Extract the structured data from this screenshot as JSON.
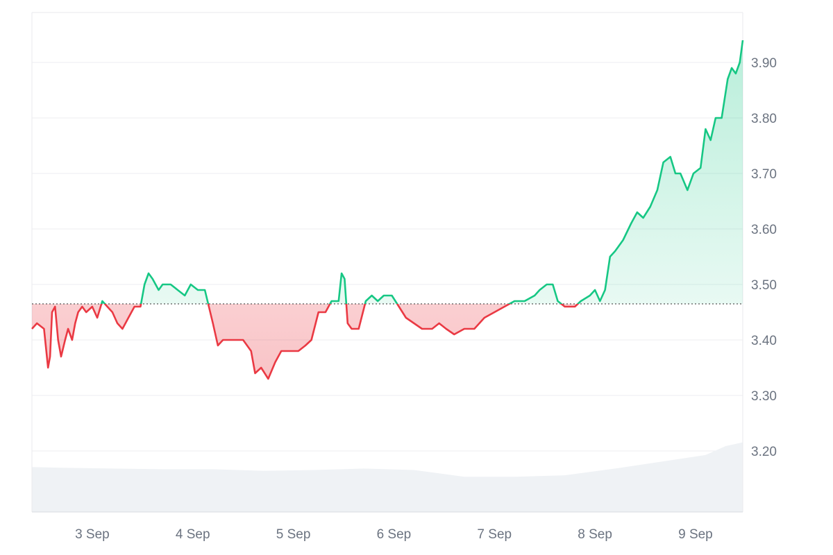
{
  "chart_data": {
    "type": "line",
    "baseline": 3.465,
    "ylim": [
      3.09,
      3.99
    ],
    "y_ticks": [
      "3.90",
      "3.80",
      "3.70",
      "3.60",
      "3.50",
      "3.40",
      "3.30",
      "3.20"
    ],
    "x_ticks": [
      "3 Sep",
      "4 Sep",
      "5 Sep",
      "6 Sep",
      "7 Sep",
      "8 Sep",
      "9 Sep"
    ],
    "x_tick_days": [
      3,
      4,
      5,
      6,
      7,
      8,
      9
    ],
    "xlim": [
      2.4,
      9.47
    ],
    "grid": true,
    "colors": {
      "up": "#16c784",
      "down": "#ea3943",
      "up_fill": "#16c784",
      "down_fill": "#ea3943",
      "volume": "#eff2f5",
      "axis_text": "#6b7380"
    },
    "series": [
      {
        "values": [
          [
            2.4,
            3.42
          ],
          [
            2.45,
            3.43
          ],
          [
            2.52,
            3.42
          ],
          [
            2.56,
            3.35
          ],
          [
            2.58,
            3.37
          ],
          [
            2.6,
            3.45
          ],
          [
            2.63,
            3.46
          ],
          [
            2.66,
            3.4
          ],
          [
            2.69,
            3.37
          ],
          [
            2.73,
            3.4
          ],
          [
            2.76,
            3.42
          ],
          [
            2.8,
            3.4
          ],
          [
            2.83,
            3.43
          ],
          [
            2.86,
            3.45
          ],
          [
            2.9,
            3.46
          ],
          [
            2.94,
            3.45
          ],
          [
            3.0,
            3.46
          ],
          [
            3.05,
            3.44
          ],
          [
            3.1,
            3.47
          ],
          [
            3.15,
            3.46
          ],
          [
            3.2,
            3.45
          ],
          [
            3.25,
            3.43
          ],
          [
            3.3,
            3.42
          ],
          [
            3.36,
            3.44
          ],
          [
            3.42,
            3.46
          ],
          [
            3.48,
            3.46
          ],
          [
            3.52,
            3.5
          ],
          [
            3.56,
            3.52
          ],
          [
            3.6,
            3.51
          ],
          [
            3.66,
            3.49
          ],
          [
            3.7,
            3.5
          ],
          [
            3.78,
            3.5
          ],
          [
            3.85,
            3.49
          ],
          [
            3.92,
            3.48
          ],
          [
            3.98,
            3.5
          ],
          [
            4.05,
            3.49
          ],
          [
            4.12,
            3.49
          ],
          [
            4.16,
            3.46
          ],
          [
            4.2,
            3.43
          ],
          [
            4.25,
            3.39
          ],
          [
            4.3,
            3.4
          ],
          [
            4.4,
            3.4
          ],
          [
            4.5,
            3.4
          ],
          [
            4.58,
            3.38
          ],
          [
            4.62,
            3.34
          ],
          [
            4.68,
            3.35
          ],
          [
            4.75,
            3.33
          ],
          [
            4.82,
            3.36
          ],
          [
            4.88,
            3.38
          ],
          [
            4.95,
            3.38
          ],
          [
            5.05,
            3.38
          ],
          [
            5.12,
            3.39
          ],
          [
            5.18,
            3.4
          ],
          [
            5.25,
            3.45
          ],
          [
            5.32,
            3.45
          ],
          [
            5.38,
            3.47
          ],
          [
            5.45,
            3.47
          ],
          [
            5.48,
            3.52
          ],
          [
            5.51,
            3.51
          ],
          [
            5.54,
            3.43
          ],
          [
            5.58,
            3.42
          ],
          [
            5.65,
            3.42
          ],
          [
            5.72,
            3.47
          ],
          [
            5.78,
            3.48
          ],
          [
            5.84,
            3.47
          ],
          [
            5.9,
            3.48
          ],
          [
            5.98,
            3.48
          ],
          [
            6.05,
            3.46
          ],
          [
            6.12,
            3.44
          ],
          [
            6.2,
            3.43
          ],
          [
            6.28,
            3.42
          ],
          [
            6.38,
            3.42
          ],
          [
            6.45,
            3.43
          ],
          [
            6.52,
            3.42
          ],
          [
            6.6,
            3.41
          ],
          [
            6.7,
            3.42
          ],
          [
            6.8,
            3.42
          ],
          [
            6.9,
            3.44
          ],
          [
            7.0,
            3.45
          ],
          [
            7.1,
            3.46
          ],
          [
            7.2,
            3.47
          ],
          [
            7.3,
            3.47
          ],
          [
            7.4,
            3.48
          ],
          [
            7.45,
            3.49
          ],
          [
            7.52,
            3.5
          ],
          [
            7.58,
            3.5
          ],
          [
            7.63,
            3.47
          ],
          [
            7.7,
            3.46
          ],
          [
            7.8,
            3.46
          ],
          [
            7.86,
            3.47
          ],
          [
            7.95,
            3.48
          ],
          [
            8.0,
            3.49
          ],
          [
            8.05,
            3.47
          ],
          [
            8.1,
            3.49
          ],
          [
            8.15,
            3.55
          ],
          [
            8.2,
            3.56
          ],
          [
            8.28,
            3.58
          ],
          [
            8.36,
            3.61
          ],
          [
            8.42,
            3.63
          ],
          [
            8.48,
            3.62
          ],
          [
            8.55,
            3.64
          ],
          [
            8.62,
            3.67
          ],
          [
            8.68,
            3.72
          ],
          [
            8.75,
            3.73
          ],
          [
            8.8,
            3.7
          ],
          [
            8.85,
            3.7
          ],
          [
            8.92,
            3.67
          ],
          [
            8.98,
            3.7
          ],
          [
            9.05,
            3.71
          ],
          [
            9.1,
            3.78
          ],
          [
            9.15,
            3.76
          ],
          [
            9.2,
            3.8
          ],
          [
            9.26,
            3.8
          ],
          [
            9.32,
            3.87
          ],
          [
            9.36,
            3.89
          ],
          [
            9.4,
            3.88
          ],
          [
            9.44,
            3.9
          ],
          [
            9.47,
            3.94
          ]
        ]
      }
    ],
    "volume": [
      [
        2.4,
        0.4
      ],
      [
        2.7,
        0.41
      ],
      [
        3.2,
        0.42
      ],
      [
        3.7,
        0.43
      ],
      [
        4.2,
        0.43
      ],
      [
        4.7,
        0.45
      ],
      [
        5.2,
        0.44
      ],
      [
        5.7,
        0.42
      ],
      [
        6.2,
        0.44
      ],
      [
        6.7,
        0.53
      ],
      [
        7.2,
        0.53
      ],
      [
        7.7,
        0.51
      ],
      [
        8.2,
        0.42
      ],
      [
        8.6,
        0.34
      ],
      [
        8.9,
        0.28
      ],
      [
        9.1,
        0.24
      ],
      [
        9.3,
        0.12
      ],
      [
        9.47,
        0.07
      ]
    ]
  }
}
